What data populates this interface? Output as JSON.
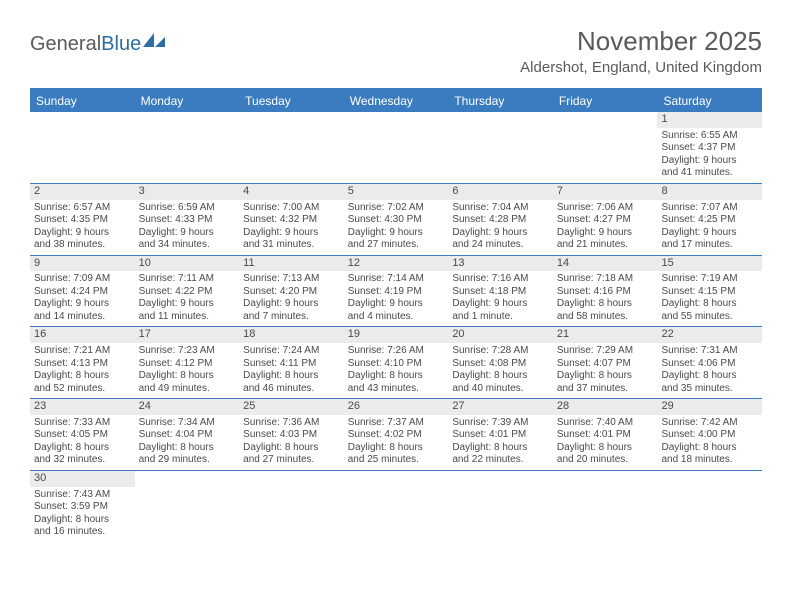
{
  "logo": {
    "general": "General",
    "blue": "Blue"
  },
  "title": "November 2025",
  "location": "Aldershot, England, United Kingdom",
  "colors": {
    "header_bg": "#3b7bbf",
    "header_text": "#ffffff",
    "daynum_bg": "#ebebeb",
    "text": "#5a5a5a",
    "cell_text": "#4a4a4a"
  },
  "day_headers": [
    "Sunday",
    "Monday",
    "Tuesday",
    "Wednesday",
    "Thursday",
    "Friday",
    "Saturday"
  ],
  "weeks": [
    [
      {
        "empty": true
      },
      {
        "empty": true
      },
      {
        "empty": true
      },
      {
        "empty": true
      },
      {
        "empty": true
      },
      {
        "empty": true
      },
      {
        "day": "1",
        "sunrise": "Sunrise: 6:55 AM",
        "sunset": "Sunset: 4:37 PM",
        "daylight1": "Daylight: 9 hours",
        "daylight2": "and 41 minutes."
      }
    ],
    [
      {
        "day": "2",
        "sunrise": "Sunrise: 6:57 AM",
        "sunset": "Sunset: 4:35 PM",
        "daylight1": "Daylight: 9 hours",
        "daylight2": "and 38 minutes."
      },
      {
        "day": "3",
        "sunrise": "Sunrise: 6:59 AM",
        "sunset": "Sunset: 4:33 PM",
        "daylight1": "Daylight: 9 hours",
        "daylight2": "and 34 minutes."
      },
      {
        "day": "4",
        "sunrise": "Sunrise: 7:00 AM",
        "sunset": "Sunset: 4:32 PM",
        "daylight1": "Daylight: 9 hours",
        "daylight2": "and 31 minutes."
      },
      {
        "day": "5",
        "sunrise": "Sunrise: 7:02 AM",
        "sunset": "Sunset: 4:30 PM",
        "daylight1": "Daylight: 9 hours",
        "daylight2": "and 27 minutes."
      },
      {
        "day": "6",
        "sunrise": "Sunrise: 7:04 AM",
        "sunset": "Sunset: 4:28 PM",
        "daylight1": "Daylight: 9 hours",
        "daylight2": "and 24 minutes."
      },
      {
        "day": "7",
        "sunrise": "Sunrise: 7:06 AM",
        "sunset": "Sunset: 4:27 PM",
        "daylight1": "Daylight: 9 hours",
        "daylight2": "and 21 minutes."
      },
      {
        "day": "8",
        "sunrise": "Sunrise: 7:07 AM",
        "sunset": "Sunset: 4:25 PM",
        "daylight1": "Daylight: 9 hours",
        "daylight2": "and 17 minutes."
      }
    ],
    [
      {
        "day": "9",
        "sunrise": "Sunrise: 7:09 AM",
        "sunset": "Sunset: 4:24 PM",
        "daylight1": "Daylight: 9 hours",
        "daylight2": "and 14 minutes."
      },
      {
        "day": "10",
        "sunrise": "Sunrise: 7:11 AM",
        "sunset": "Sunset: 4:22 PM",
        "daylight1": "Daylight: 9 hours",
        "daylight2": "and 11 minutes."
      },
      {
        "day": "11",
        "sunrise": "Sunrise: 7:13 AM",
        "sunset": "Sunset: 4:20 PM",
        "daylight1": "Daylight: 9 hours",
        "daylight2": "and 7 minutes."
      },
      {
        "day": "12",
        "sunrise": "Sunrise: 7:14 AM",
        "sunset": "Sunset: 4:19 PM",
        "daylight1": "Daylight: 9 hours",
        "daylight2": "and 4 minutes."
      },
      {
        "day": "13",
        "sunrise": "Sunrise: 7:16 AM",
        "sunset": "Sunset: 4:18 PM",
        "daylight1": "Daylight: 9 hours",
        "daylight2": "and 1 minute."
      },
      {
        "day": "14",
        "sunrise": "Sunrise: 7:18 AM",
        "sunset": "Sunset: 4:16 PM",
        "daylight1": "Daylight: 8 hours",
        "daylight2": "and 58 minutes."
      },
      {
        "day": "15",
        "sunrise": "Sunrise: 7:19 AM",
        "sunset": "Sunset: 4:15 PM",
        "daylight1": "Daylight: 8 hours",
        "daylight2": "and 55 minutes."
      }
    ],
    [
      {
        "day": "16",
        "sunrise": "Sunrise: 7:21 AM",
        "sunset": "Sunset: 4:13 PM",
        "daylight1": "Daylight: 8 hours",
        "daylight2": "and 52 minutes."
      },
      {
        "day": "17",
        "sunrise": "Sunrise: 7:23 AM",
        "sunset": "Sunset: 4:12 PM",
        "daylight1": "Daylight: 8 hours",
        "daylight2": "and 49 minutes."
      },
      {
        "day": "18",
        "sunrise": "Sunrise: 7:24 AM",
        "sunset": "Sunset: 4:11 PM",
        "daylight1": "Daylight: 8 hours",
        "daylight2": "and 46 minutes."
      },
      {
        "day": "19",
        "sunrise": "Sunrise: 7:26 AM",
        "sunset": "Sunset: 4:10 PM",
        "daylight1": "Daylight: 8 hours",
        "daylight2": "and 43 minutes."
      },
      {
        "day": "20",
        "sunrise": "Sunrise: 7:28 AM",
        "sunset": "Sunset: 4:08 PM",
        "daylight1": "Daylight: 8 hours",
        "daylight2": "and 40 minutes."
      },
      {
        "day": "21",
        "sunrise": "Sunrise: 7:29 AM",
        "sunset": "Sunset: 4:07 PM",
        "daylight1": "Daylight: 8 hours",
        "daylight2": "and 37 minutes."
      },
      {
        "day": "22",
        "sunrise": "Sunrise: 7:31 AM",
        "sunset": "Sunset: 4:06 PM",
        "daylight1": "Daylight: 8 hours",
        "daylight2": "and 35 minutes."
      }
    ],
    [
      {
        "day": "23",
        "sunrise": "Sunrise: 7:33 AM",
        "sunset": "Sunset: 4:05 PM",
        "daylight1": "Daylight: 8 hours",
        "daylight2": "and 32 minutes."
      },
      {
        "day": "24",
        "sunrise": "Sunrise: 7:34 AM",
        "sunset": "Sunset: 4:04 PM",
        "daylight1": "Daylight: 8 hours",
        "daylight2": "and 29 minutes."
      },
      {
        "day": "25",
        "sunrise": "Sunrise: 7:36 AM",
        "sunset": "Sunset: 4:03 PM",
        "daylight1": "Daylight: 8 hours",
        "daylight2": "and 27 minutes."
      },
      {
        "day": "26",
        "sunrise": "Sunrise: 7:37 AM",
        "sunset": "Sunset: 4:02 PM",
        "daylight1": "Daylight: 8 hours",
        "daylight2": "and 25 minutes."
      },
      {
        "day": "27",
        "sunrise": "Sunrise: 7:39 AM",
        "sunset": "Sunset: 4:01 PM",
        "daylight1": "Daylight: 8 hours",
        "daylight2": "and 22 minutes."
      },
      {
        "day": "28",
        "sunrise": "Sunrise: 7:40 AM",
        "sunset": "Sunset: 4:01 PM",
        "daylight1": "Daylight: 8 hours",
        "daylight2": "and 20 minutes."
      },
      {
        "day": "29",
        "sunrise": "Sunrise: 7:42 AM",
        "sunset": "Sunset: 4:00 PM",
        "daylight1": "Daylight: 8 hours",
        "daylight2": "and 18 minutes."
      }
    ],
    [
      {
        "day": "30",
        "sunrise": "Sunrise: 7:43 AM",
        "sunset": "Sunset: 3:59 PM",
        "daylight1": "Daylight: 8 hours",
        "daylight2": "and 16 minutes."
      },
      {
        "empty": true
      },
      {
        "empty": true
      },
      {
        "empty": true
      },
      {
        "empty": true
      },
      {
        "empty": true
      },
      {
        "empty": true
      }
    ]
  ]
}
